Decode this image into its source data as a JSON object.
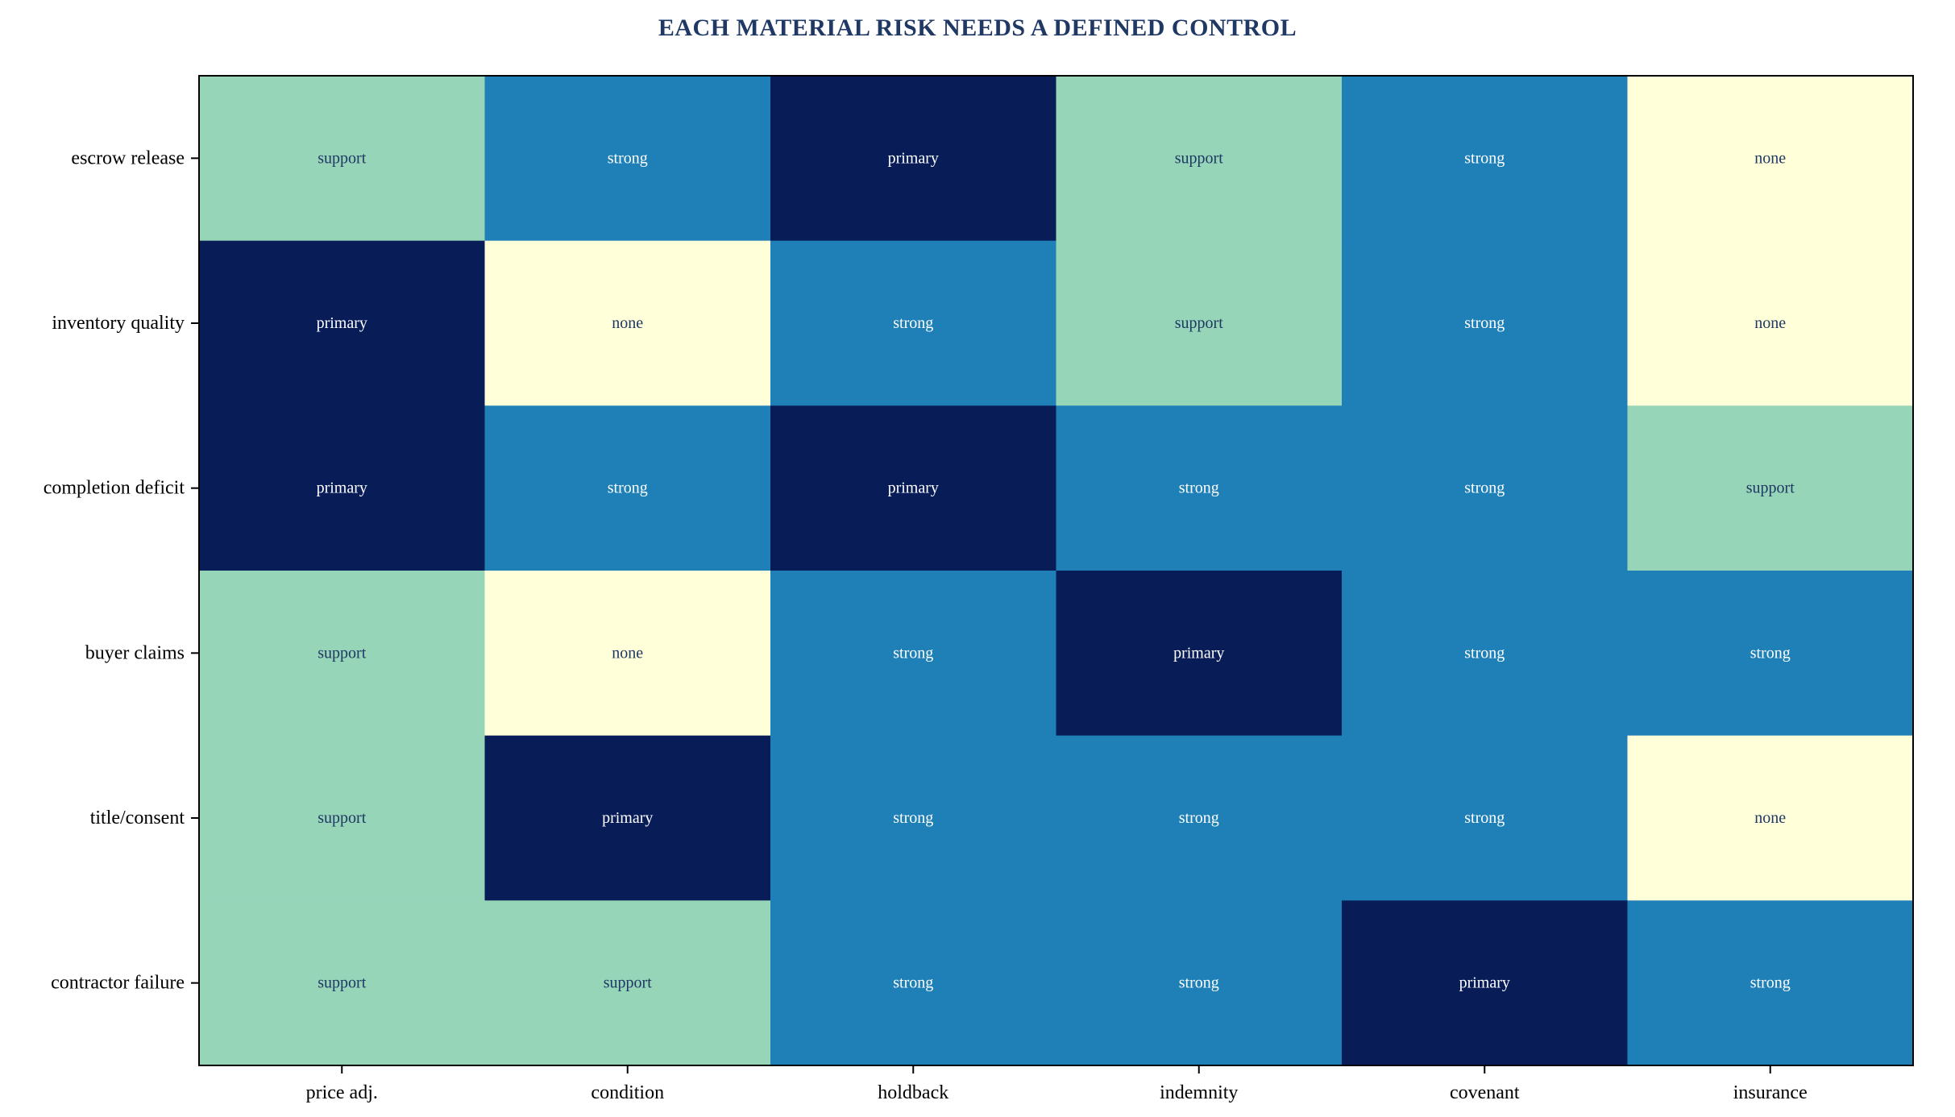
{
  "chart_data": {
    "type": "heatmap",
    "title": "EACH MATERIAL RISK NEEDS A DEFINED CONTROL",
    "columns": [
      "price adj.",
      "condition",
      "holdback",
      "indemnity",
      "covenant",
      "insurance"
    ],
    "rows": [
      "escrow release",
      "inventory quality",
      "completion deficit",
      "buyer claims",
      "title/consent",
      "contractor failure"
    ],
    "levels": [
      "none",
      "support",
      "strong",
      "primary"
    ],
    "values": [
      [
        "support",
        "strong",
        "primary",
        "support",
        "strong",
        "none"
      ],
      [
        "primary",
        "none",
        "strong",
        "support",
        "strong",
        "none"
      ],
      [
        "primary",
        "strong",
        "primary",
        "strong",
        "strong",
        "support"
      ],
      [
        "support",
        "none",
        "strong",
        "primary",
        "strong",
        "strong"
      ],
      [
        "support",
        "primary",
        "strong",
        "strong",
        "strong",
        "none"
      ],
      [
        "support",
        "support",
        "strong",
        "strong",
        "primary",
        "strong"
      ]
    ],
    "colors": {
      "none": "#ffffd9",
      "support": "#97d5b9",
      "strong": "#1f80b8",
      "primary": "#081d58"
    },
    "text_colors": {
      "none": "#1f3864",
      "support": "#1f3864",
      "strong": "#ffffff",
      "primary": "#ffffff"
    },
    "title_color": "#1f3864"
  }
}
